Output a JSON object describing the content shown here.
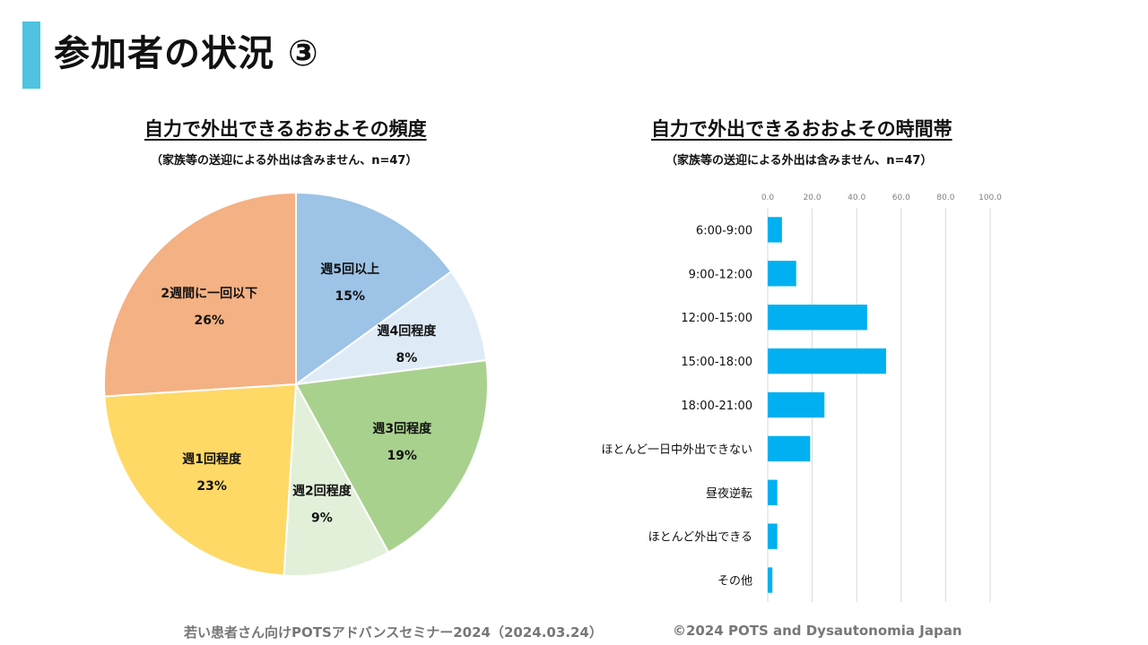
{
  "page": {
    "title": "参加者の状況 ③",
    "accent_color": "#4fc3e0"
  },
  "footer": {
    "left": "若い患者さん向けPOTSアドバンスセミナー2024（2024.03.24）",
    "right": "©2024 POTS and Dysautonomia Japan"
  },
  "chart_data": [
    {
      "type": "pie",
      "title": "自力で外出できるおおよその頻度",
      "subtitle": "（家族等の送迎による外出は含みません、n=47）",
      "slices": [
        {
          "label": "週5回以上",
          "value": 15,
          "display": "15%",
          "color": "#9dc3e6"
        },
        {
          "label": "週4回程度",
          "value": 8,
          "display": "8%",
          "color": "#deebf7"
        },
        {
          "label": "週3回程度",
          "value": 19,
          "display": "19%",
          "color": "#a9d18e"
        },
        {
          "label": "週2回程度",
          "value": 9,
          "display": "9%",
          "color": "#e2f0d9"
        },
        {
          "label": "週1回程度",
          "value": 23,
          "display": "23%",
          "color": "#ffd966"
        },
        {
          "label": "2週間に一回以下",
          "value": 26,
          "display": "26%",
          "color": "#f4b183"
        }
      ],
      "start": "12 o'clock",
      "direction": "clockwise"
    },
    {
      "type": "bar",
      "orientation": "horizontal",
      "title": "自力で外出できるおおよその時間帯",
      "subtitle": "（家族等の送迎による外出は含みません、n=47）",
      "categories": [
        "6:00-9:00",
        "9:00-12:00",
        "12:00-15:00",
        "15:00-18:00",
        "18:00-21:00",
        "ほとんど一日中外出できない",
        "昼夜逆転",
        "ほとんど外出できる",
        "その他"
      ],
      "values": [
        6.4,
        12.8,
        44.7,
        53.2,
        25.5,
        19.1,
        4.3,
        4.3,
        2.1
      ],
      "xlim": [
        0,
        100
      ],
      "xticks": [
        "0.0",
        "20.0",
        "40.0",
        "60.0",
        "80.0",
        "100.0"
      ],
      "x_axis_position": "top",
      "grid": true,
      "bar_color": "#00b0f0",
      "xlabel": "",
      "ylabel": ""
    }
  ]
}
